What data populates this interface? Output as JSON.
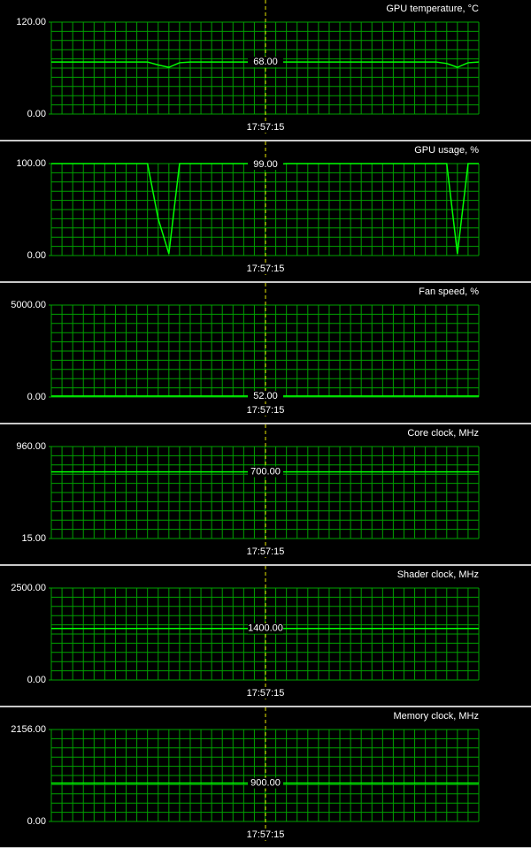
{
  "chart_data": [
    {
      "type": "line",
      "title": "GPU temperature, °C",
      "color": "#00ff00",
      "ylim": [
        0,
        120
      ],
      "yticks": [
        {
          "value": 0,
          "label": "0.00"
        },
        {
          "value": 120,
          "label": "120.00"
        }
      ],
      "values": [
        68,
        68,
        68,
        68,
        68,
        68,
        68,
        68,
        68,
        68,
        64,
        61,
        67,
        68,
        68,
        68,
        68,
        68,
        68,
        68,
        68,
        68,
        68,
        68,
        68,
        68,
        68,
        68,
        68,
        68,
        68,
        68,
        68,
        68,
        68,
        68,
        68,
        66,
        61,
        67,
        68
      ],
      "cursor": {
        "value": 68,
        "label": "68.00"
      },
      "cursor_time": "17:57:15"
    },
    {
      "type": "line",
      "title": "GPU usage, %",
      "color": "#00ff00",
      "ylim": [
        0,
        100
      ],
      "yticks": [
        {
          "value": 0,
          "label": "0.00"
        },
        {
          "value": 100,
          "label": "100.00"
        }
      ],
      "values": [
        100,
        100,
        100,
        100,
        100,
        100,
        100,
        100,
        100,
        100,
        40,
        2,
        100,
        100,
        100,
        100,
        100,
        100,
        100,
        100,
        99,
        99,
        100,
        100,
        100,
        100,
        100,
        100,
        100,
        100,
        100,
        100,
        100,
        100,
        100,
        100,
        100,
        100,
        2,
        100,
        100
      ],
      "cursor": {
        "value": 99,
        "label": "99.00"
      },
      "cursor_time": "17:57:15"
    },
    {
      "type": "line",
      "title": "Fan speed, %",
      "color": "#00ff00",
      "ylim": [
        0,
        5000
      ],
      "yticks": [
        {
          "value": 0,
          "label": "0.00"
        },
        {
          "value": 5000,
          "label": "5000.00"
        }
      ],
      "values": [
        52,
        52,
        52,
        52,
        52,
        52,
        52,
        52,
        52,
        52,
        52,
        52,
        52,
        52,
        52,
        52,
        52,
        52,
        52,
        52,
        52,
        52,
        52,
        52,
        52,
        52,
        52,
        52,
        52,
        52,
        52,
        52,
        52,
        52,
        52,
        52,
        52,
        52,
        52,
        52,
        52
      ],
      "cursor": {
        "value": 52,
        "label": "52.00"
      },
      "cursor_time": "17:57:15"
    },
    {
      "type": "line",
      "title": "Core clock, MHz",
      "color": "#00ff00",
      "ylim": [
        15,
        960
      ],
      "yticks": [
        {
          "value": 15,
          "label": "15.00"
        },
        {
          "value": 960,
          "label": "960.00"
        }
      ],
      "values": [
        700,
        700,
        700,
        700,
        700,
        700,
        700,
        700,
        700,
        700,
        700,
        700,
        700,
        700,
        700,
        700,
        700,
        700,
        700,
        700,
        700,
        700,
        700,
        700,
        700,
        700,
        700,
        700,
        700,
        700,
        700,
        700,
        700,
        700,
        700,
        700,
        700,
        700,
        700,
        700,
        700
      ],
      "cursor": {
        "value": 700,
        "label": "700.00"
      },
      "cursor_time": "17:57:15"
    },
    {
      "type": "line",
      "title": "Shader clock, MHz",
      "color": "#00ff00",
      "ylim": [
        0,
        2500
      ],
      "yticks": [
        {
          "value": 0,
          "label": "0.00"
        },
        {
          "value": 2500,
          "label": "2500.00"
        }
      ],
      "values": [
        1400,
        1400,
        1400,
        1400,
        1400,
        1400,
        1400,
        1400,
        1400,
        1400,
        1400,
        1400,
        1400,
        1400,
        1400,
        1400,
        1400,
        1400,
        1400,
        1400,
        1400,
        1400,
        1400,
        1400,
        1400,
        1400,
        1400,
        1400,
        1400,
        1400,
        1400,
        1400,
        1400,
        1400,
        1400,
        1400,
        1400,
        1400,
        1400,
        1400,
        1400
      ],
      "cursor": {
        "value": 1400,
        "label": "1400.00"
      },
      "cursor_time": "17:57:15"
    },
    {
      "type": "line",
      "title": "Memory clock, MHz",
      "color": "#00ff00",
      "ylim": [
        0,
        2156
      ],
      "yticks": [
        {
          "value": 0,
          "label": "0.00"
        },
        {
          "value": 2156,
          "label": "2156.00"
        }
      ],
      "values": [
        900,
        900,
        900,
        900,
        900,
        900,
        900,
        900,
        900,
        900,
        900,
        900,
        900,
        900,
        900,
        900,
        900,
        900,
        900,
        900,
        900,
        900,
        900,
        900,
        900,
        900,
        900,
        900,
        900,
        900,
        900,
        900,
        900,
        900,
        900,
        900,
        900,
        900,
        900,
        900,
        900
      ],
      "cursor": {
        "value": 900,
        "label": "900.00"
      },
      "cursor_time": "17:57:15"
    }
  ]
}
